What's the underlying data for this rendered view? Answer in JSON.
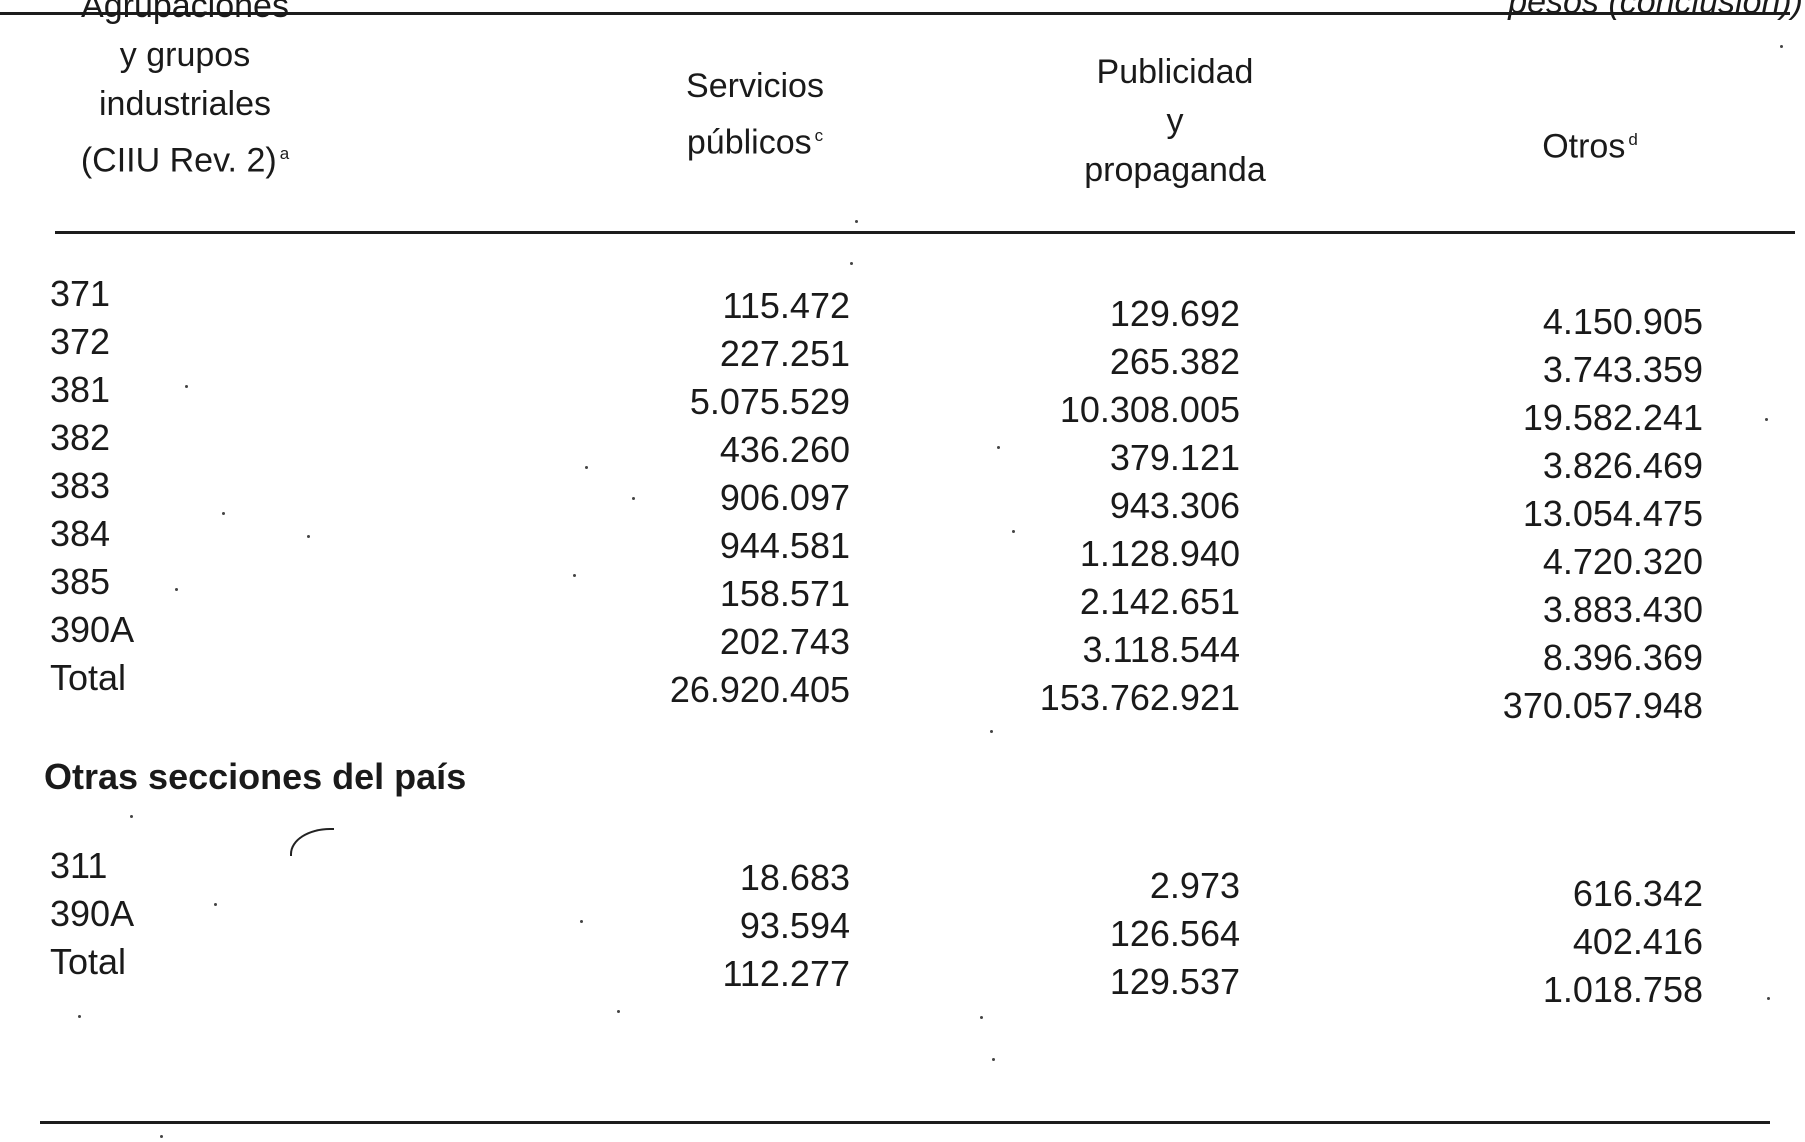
{
  "header_note": "pesos (conclusión))",
  "columns": {
    "col0": [
      "Agrupaciones",
      "y grupos",
      "industriales",
      "(CIIU Rev. 2)"
    ],
    "col0_note": "a",
    "col1": [
      "Servicios",
      "públicos"
    ],
    "col1_note": "c",
    "col2": [
      "Publicidad",
      "y",
      "propaganda"
    ],
    "col3": [
      "Otros"
    ],
    "col3_note": "d"
  },
  "rows": [
    {
      "label": "371",
      "servicios": "115.472",
      "publicidad": "129.692",
      "otros": "4.150.905"
    },
    {
      "label": "372",
      "servicios": "227.251",
      "publicidad": "265.382",
      "otros": "3.743.359"
    },
    {
      "label": "381",
      "servicios": "5.075.529",
      "publicidad": "10.308.005",
      "otros": "19.582.241"
    },
    {
      "label": "382",
      "servicios": "436.260",
      "publicidad": "379.121",
      "otros": "3.826.469"
    },
    {
      "label": "383",
      "servicios": "906.097",
      "publicidad": "943.306",
      "otros": "13.054.475"
    },
    {
      "label": "384",
      "servicios": "944.581",
      "publicidad": "1.128.940",
      "otros": "4.720.320"
    },
    {
      "label": "385",
      "servicios": "158.571",
      "publicidad": "2.142.651",
      "otros": "3.883.430"
    },
    {
      "label": "390A",
      "servicios": "202.743",
      "publicidad": "3.118.544",
      "otros": "8.396.369"
    },
    {
      "label": "Total",
      "servicios": "26.920.405",
      "publicidad": "153.762.921",
      "otros": "370.057.948"
    }
  ],
  "section2": {
    "title": "Otras secciones del país",
    "rows": [
      {
        "label": "311",
        "servicios": "18.683",
        "publicidad": "2.973",
        "otros": "616.342"
      },
      {
        "label": "390A",
        "servicios": "93.594",
        "publicidad": "126.564",
        "otros": "402.416"
      },
      {
        "label": "Total",
        "servicios": "112.277",
        "publicidad": "129.537",
        "otros": "1.018.758"
      }
    ]
  }
}
